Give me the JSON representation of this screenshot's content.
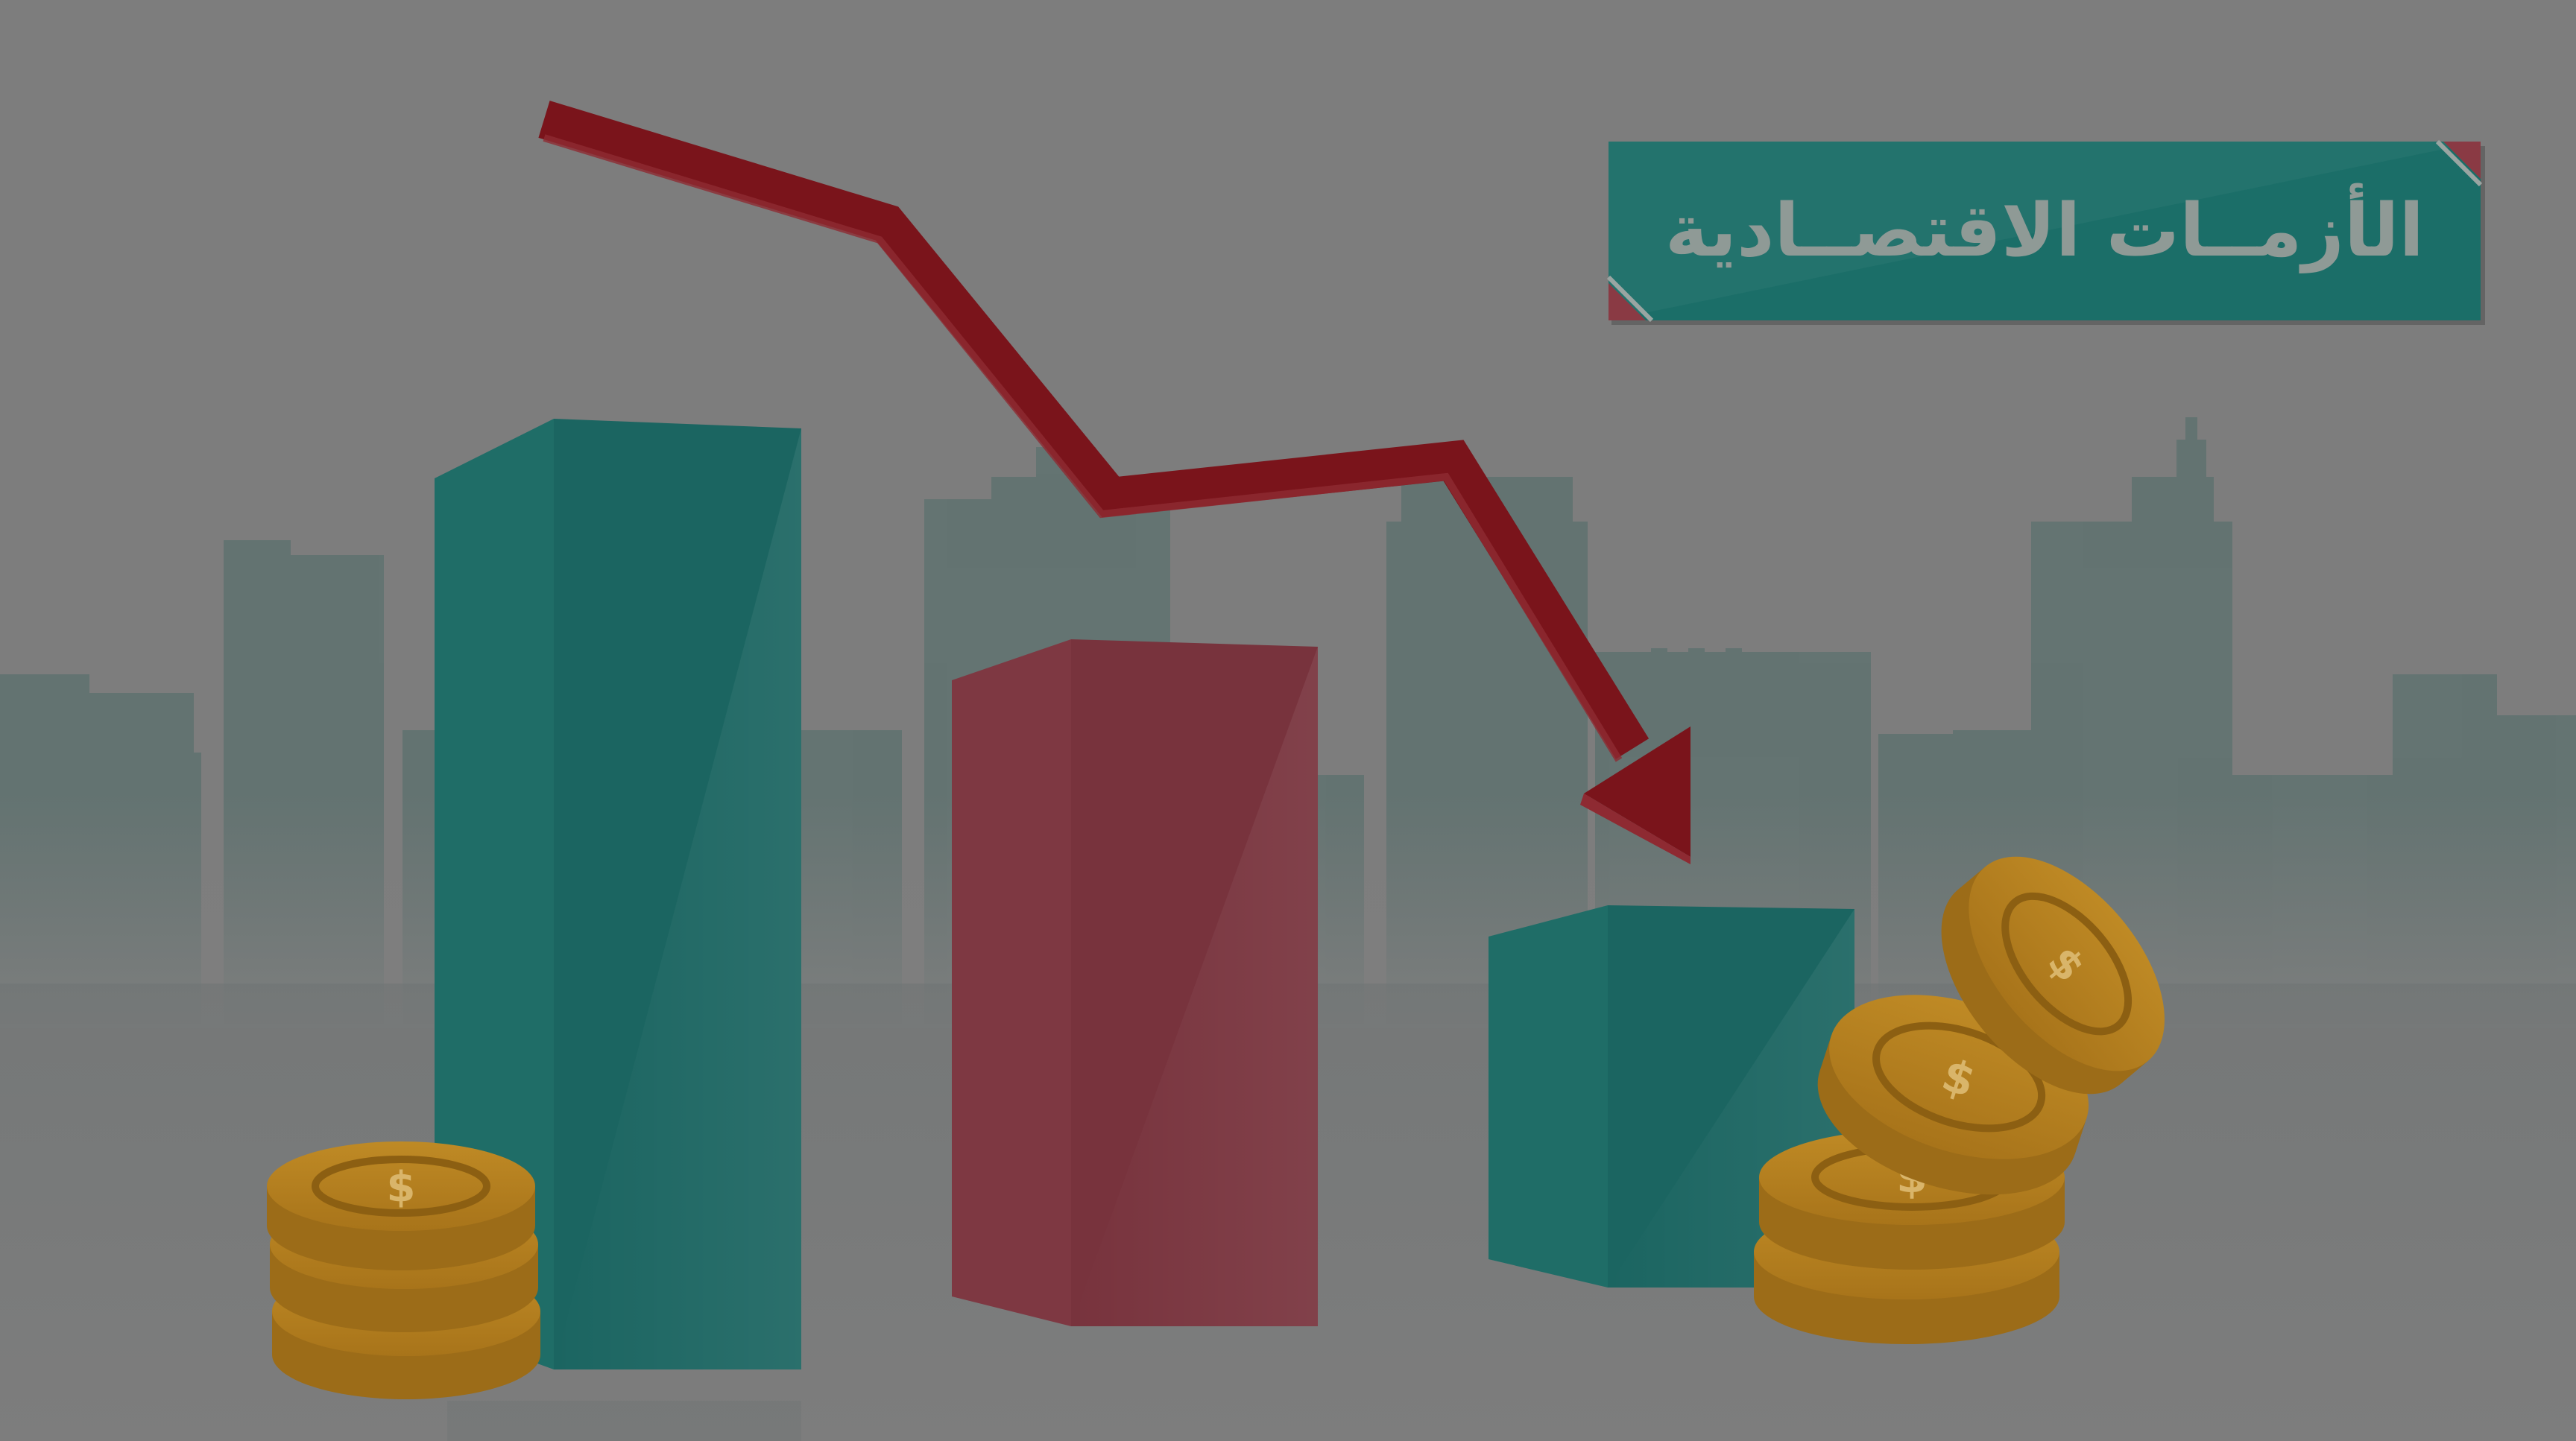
{
  "banner": {
    "title": "الأزمــات الاقتصــادية"
  },
  "illustration": {
    "subject": "economic-crisis-decline",
    "bars": [
      {
        "label": "",
        "color": "#1d6762",
        "level": 0.74
      },
      {
        "label": "",
        "color": "#7a3640",
        "level": 0.51
      },
      {
        "label": "",
        "color": "#1d6762",
        "level": 0.29
      }
    ],
    "trend_arrow": {
      "direction": "down",
      "color": "#7a141b"
    },
    "coin_symbol": "$",
    "colors": {
      "background": "#7d7d7d",
      "skyline": "#5f7270",
      "teal": "#1d6762",
      "red": "#7a3640",
      "gold": "#b27e1d",
      "banner": "#1b6e68",
      "banner_text": "#8f9a96",
      "banner_corner": "#8a3a44"
    }
  }
}
